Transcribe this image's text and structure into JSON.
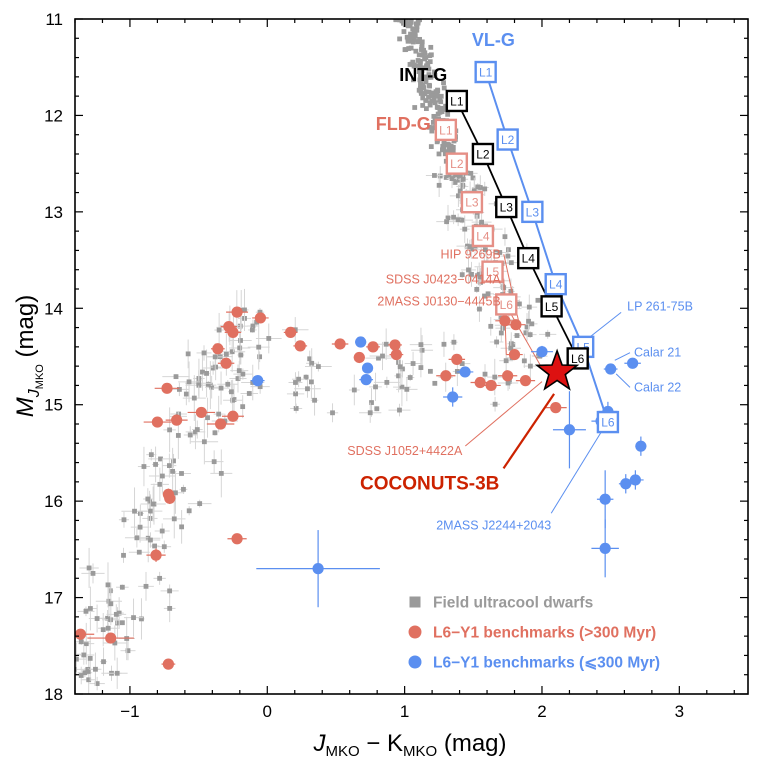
{
  "chart_data": {
    "type": "scatter",
    "xlabel": {
      "main": "J",
      "sub1": "MKO",
      "mid": " − K",
      "sub2": "MKO",
      "unit": " (mag)"
    },
    "ylabel": {
      "main": "M",
      "sub": "J",
      "subsub": "MKO",
      "unit": " (mag)"
    },
    "xlim": [
      -1.4,
      3.5
    ],
    "ylim": [
      18,
      11
    ],
    "y_inverted": true,
    "xticks": [
      -1,
      0,
      1,
      2,
      3
    ],
    "xtick_labels": [
      "−1",
      "0",
      "1",
      "2",
      "3"
    ],
    "yticks": [
      11,
      12,
      13,
      14,
      15,
      16,
      17,
      18
    ],
    "ytick_labels": [
      "11",
      "12",
      "13",
      "14",
      "15",
      "16",
      "17",
      "18"
    ],
    "colors": {
      "field": "#9a9a9a",
      "old": "#e07060",
      "young": "#5b8ff0",
      "black": "#000000",
      "coconuts": "#cc2200",
      "star_fill": "#dd1111",
      "fld_box": "#e58f86",
      "vlg_box": "#5b8ff0"
    },
    "sequence_labels": [
      {
        "text": "VL-G",
        "color": "#5b8ff0"
      },
      {
        "text": "INT-G",
        "color": "#000000"
      },
      {
        "text": "FLD-G",
        "color": "#e07060"
      }
    ],
    "sequences": [
      {
        "name": "VL-G",
        "points": [
          {
            "label": "L1",
            "x": 1.59,
            "y": 11.55
          },
          {
            "label": "L2",
            "x": 1.75,
            "y": 12.25
          },
          {
            "label": "L3",
            "x": 1.93,
            "y": 13.0
          },
          {
            "label": "L4",
            "x": 2.1,
            "y": 13.75
          },
          {
            "label": "L5",
            "x": 2.3,
            "y": 14.4
          },
          {
            "label": "L6",
            "x": 2.48,
            "y": 15.18
          }
        ]
      },
      {
        "name": "INT-G",
        "points": [
          {
            "label": "L1",
            "x": 1.38,
            "y": 11.85
          },
          {
            "label": "L2",
            "x": 1.57,
            "y": 12.4
          },
          {
            "label": "L3",
            "x": 1.74,
            "y": 12.95
          },
          {
            "label": "L4",
            "x": 1.9,
            "y": 13.48
          },
          {
            "label": "L5",
            "x": 2.07,
            "y": 13.98
          },
          {
            "label": "L6",
            "x": 2.26,
            "y": 14.52
          }
        ]
      },
      {
        "name": "FLD-G",
        "points": [
          {
            "label": "L1",
            "x": 1.3,
            "y": 12.15
          },
          {
            "label": "L2",
            "x": 1.38,
            "y": 12.5
          },
          {
            "label": "L3",
            "x": 1.49,
            "y": 12.9
          },
          {
            "label": "L4",
            "x": 1.57,
            "y": 13.25
          },
          {
            "label": "L5",
            "x": 1.64,
            "y": 13.62
          },
          {
            "label": "L6",
            "x": 1.74,
            "y": 13.96
          }
        ]
      }
    ],
    "old_benchmarks": [
      {
        "x": -1.36,
        "y": 17.38,
        "xe": 0.1,
        "ye": 0.04
      },
      {
        "x": -1.14,
        "y": 17.42,
        "xe": 0.17,
        "ye": 0.04
      },
      {
        "x": -0.72,
        "y": 17.69,
        "xe": 0.05,
        "ye": 0.05
      },
      {
        "x": -0.81,
        "y": 16.56,
        "xe": 0.07,
        "ye": 0.07
      },
      {
        "x": -0.22,
        "y": 16.39,
        "xe": 0.07,
        "ye": 0.04
      },
      {
        "x": -0.72,
        "y": 15.93,
        "xe": 0.04,
        "ye": 0.06
      },
      {
        "x": -0.71,
        "y": 15.97,
        "xe": 0.04,
        "ye": 0.06
      },
      {
        "x": -0.73,
        "y": 14.83,
        "xe": 0.09,
        "ye": 0.05
      },
      {
        "x": -0.8,
        "y": 15.18,
        "xe": 0.1,
        "ye": 0.05
      },
      {
        "x": -0.66,
        "y": 15.16,
        "xe": 0.08,
        "ye": 0.05
      },
      {
        "x": -0.48,
        "y": 15.08,
        "xe": 0.1,
        "ye": 0.05
      },
      {
        "x": -0.34,
        "y": 15.2,
        "xe": 0.1,
        "ye": 0.05
      },
      {
        "x": -0.25,
        "y": 15.12,
        "xe": 0.08,
        "ye": 0.05
      },
      {
        "x": -0.36,
        "y": 14.42,
        "xe": 0.05,
        "ye": 0.05
      },
      {
        "x": -0.3,
        "y": 14.57,
        "xe": 0.06,
        "ye": 0.05
      },
      {
        "x": -0.28,
        "y": 14.19,
        "xe": 0.06,
        "ye": 0.04
      },
      {
        "x": -0.25,
        "y": 14.25,
        "xe": 0.06,
        "ye": 0.04
      },
      {
        "x": -0.22,
        "y": 14.04,
        "xe": 0.08,
        "ye": 0.04
      },
      {
        "x": -0.05,
        "y": 14.1,
        "xe": 0.06,
        "ye": 0.04
      },
      {
        "x": 0.17,
        "y": 14.25,
        "xe": 0.05,
        "ye": 0.04
      },
      {
        "x": 0.24,
        "y": 14.39,
        "xe": 0.05,
        "ye": 0.04
      },
      {
        "x": 0.53,
        "y": 14.37,
        "xe": 0.06,
        "ye": 0.04
      },
      {
        "x": 0.67,
        "y": 14.51,
        "xe": 0.04,
        "ye": 0.04
      },
      {
        "x": 0.77,
        "y": 14.4,
        "xe": 0.05,
        "ye": 0.04
      },
      {
        "x": 0.93,
        "y": 14.38,
        "xe": 0.05,
        "ye": 0.05
      },
      {
        "x": 0.94,
        "y": 14.48,
        "xe": 0.05,
        "ye": 0.05
      },
      {
        "x": 1.38,
        "y": 14.53,
        "xe": 0.06,
        "ye": 0.05
      },
      {
        "x": 1.3,
        "y": 14.7,
        "xe": 0.07,
        "ye": 0.05
      },
      {
        "x": 1.55,
        "y": 14.77,
        "xe": 0.07,
        "ye": 0.05
      },
      {
        "x": 1.63,
        "y": 14.8,
        "xe": 0.07,
        "ye": 0.05
      },
      {
        "x": 1.75,
        "y": 14.7,
        "xe": 0.07,
        "ye": 0.05
      },
      {
        "x": 1.88,
        "y": 14.75,
        "xe": 0.07,
        "ye": 0.05
      },
      {
        "x": 1.73,
        "y": 14.13,
        "xe": 0.07,
        "ye": 0.05
      },
      {
        "x": 1.81,
        "y": 14.17,
        "xe": 0.07,
        "ye": 0.05
      },
      {
        "x": 1.8,
        "y": 14.48,
        "xe": 0.06,
        "ye": 0.05
      },
      {
        "x": 2.1,
        "y": 15.03,
        "xe": 0.08,
        "ye": 0.05
      }
    ],
    "young_benchmarks": [
      {
        "x": 0.37,
        "y": 16.7,
        "xe": 0.45,
        "ye": 0.4
      },
      {
        "x": -0.07,
        "y": 14.75,
        "xe": 0.05,
        "ye": 0.05
      },
      {
        "x": 0.68,
        "y": 14.35,
        "xe": 0.04,
        "ye": 0.04
      },
      {
        "x": 0.73,
        "y": 14.62,
        "xe": 0.04,
        "ye": 0.05
      },
      {
        "x": 0.72,
        "y": 14.74,
        "xe": 0.05,
        "ye": 0.05
      },
      {
        "x": 1.44,
        "y": 14.66,
        "xe": 0.06,
        "ye": 0.05
      },
      {
        "x": 1.35,
        "y": 14.92,
        "xe": 0.07,
        "ye": 0.1
      },
      {
        "x": 2.0,
        "y": 14.45,
        "xe": 0.08,
        "ye": 0.06
      },
      {
        "x": 2.2,
        "y": 15.26,
        "xe": 0.12,
        "ye": 0.4
      },
      {
        "x": 2.43,
        "y": 15.17,
        "xe": 0.07,
        "ye": 0.1
      },
      {
        "x": 2.48,
        "y": 15.07,
        "xe": 0.07,
        "ye": 0.1
      },
      {
        "x": 2.5,
        "y": 14.63,
        "xe": 0.05,
        "ye": 0.05
      },
      {
        "x": 2.66,
        "y": 14.57,
        "xe": 0.06,
        "ye": 0.05
      },
      {
        "x": 2.72,
        "y": 15.43,
        "xe": 0.04,
        "ye": 0.1
      },
      {
        "x": 2.61,
        "y": 15.82,
        "xe": 0.05,
        "ye": 0.1
      },
      {
        "x": 2.68,
        "y": 15.78,
        "xe": 0.06,
        "ye": 0.1
      },
      {
        "x": 2.46,
        "y": 15.98,
        "xe": 0.06,
        "ye": 0.3
      },
      {
        "x": 2.46,
        "y": 16.49,
        "xe": 0.1,
        "ye": 0.3
      }
    ],
    "coconuts": {
      "x": 2.11,
      "y": 14.66,
      "label": "COCONUTS-3B"
    },
    "annotations": [
      {
        "text": "HIP 9269B",
        "color": "#e07060",
        "x": 1.7,
        "y": 13.44,
        "ax": 1.84,
        "ay": 14.2
      },
      {
        "text": "SDSS J0423−0414A",
        "color": "#e07060",
        "x": 1.7,
        "y": 13.7,
        "ax": 1.74,
        "ay": 14.48
      },
      {
        "text": "2MASS J0130−4445B",
        "color": "#e07060",
        "x": 1.7,
        "y": 13.93,
        "ax": 2.0,
        "ay": 14.62
      },
      {
        "text": "SDSS J1052+4422A",
        "color": "#e07060",
        "x": 1.42,
        "y": 15.48,
        "ax": 2.0,
        "ay": 14.76
      },
      {
        "text": "LP 261-75B",
        "color": "#5b8ff0",
        "x": 2.62,
        "y": 13.98,
        "ax": 2.24,
        "ay": 14.42
      },
      {
        "text": "Calar 21",
        "color": "#5b8ff0",
        "x": 2.67,
        "y": 14.46,
        "ax": 2.53,
        "ay": 14.54
      },
      {
        "text": "Calar 22",
        "color": "#5b8ff0",
        "x": 2.67,
        "y": 14.82,
        "ax": 2.54,
        "ay": 14.68
      },
      {
        "text": "2MASS J2244+2043",
        "color": "#5b8ff0",
        "x": 1.23,
        "y": 16.25,
        "ax": 2.45,
        "ay": 15.24
      }
    ],
    "legend": {
      "position": "bottom-right",
      "entries": [
        {
          "label": "Field ultracool dwarfs",
          "marker": "square",
          "color": "#9a9a9a"
        },
        {
          "label": "L6−Y1 benchmarks (>300 Myr)",
          "marker": "circle",
          "color": "#e07060"
        },
        {
          "label": "L6−Y1 benchmarks (⩽300 Myr)",
          "marker": "circle",
          "color": "#5b8ff0"
        }
      ]
    }
  }
}
